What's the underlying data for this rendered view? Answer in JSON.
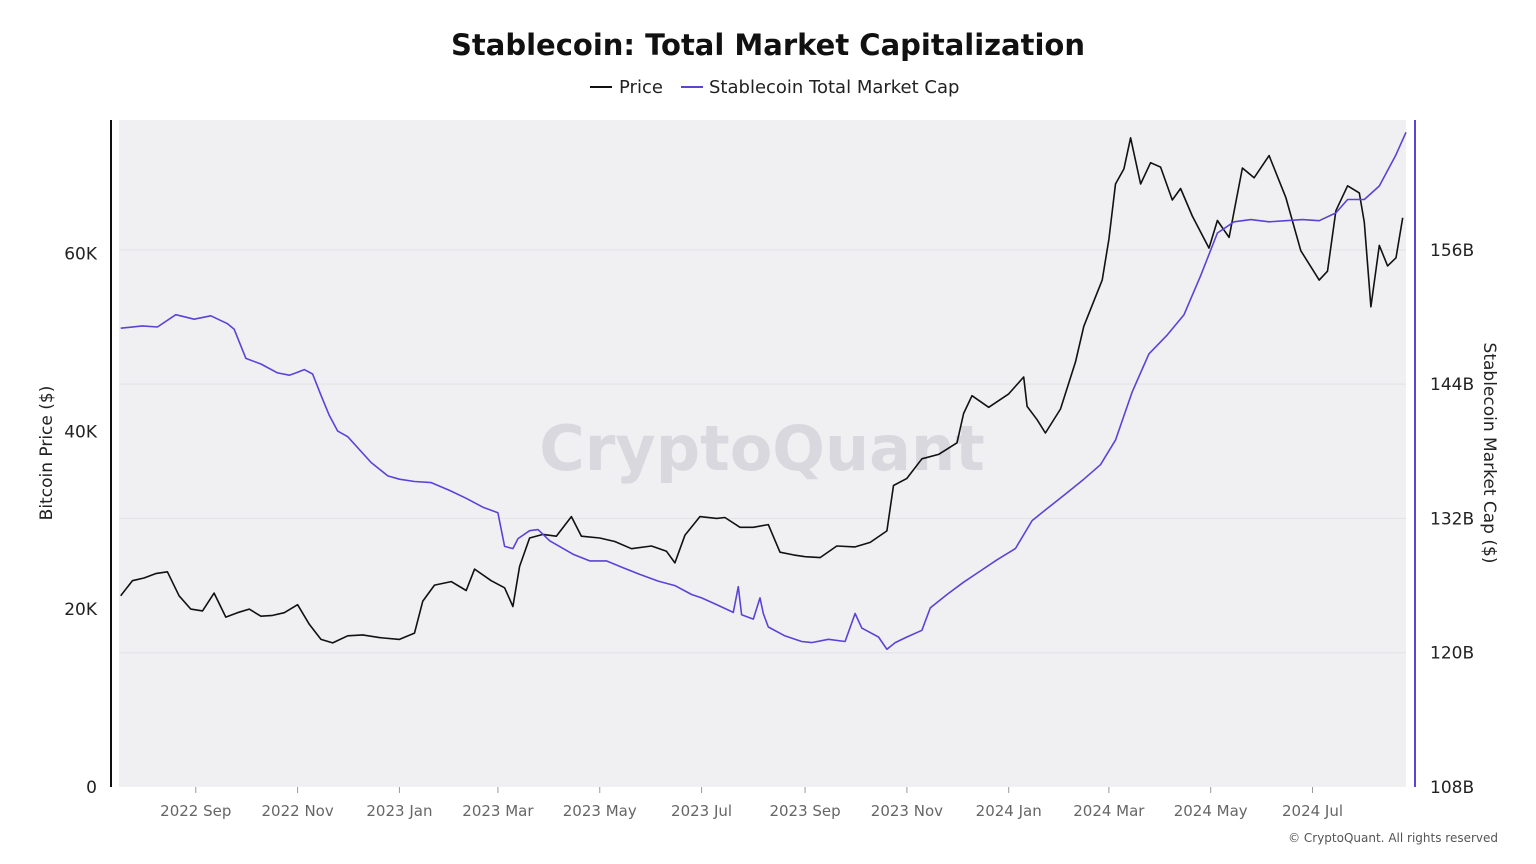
{
  "watermark": "CryptoQuant",
  "copyright": "© CryptoQuant. All rights reserved",
  "colors": {
    "price": "#111111",
    "stablecoin": "#5b43d6",
    "plot_bg": "#f0f0f3",
    "grid": "#e2e2e6"
  },
  "chart_data": {
    "type": "line",
    "title": "Stablecoin: Total Market Capitalization",
    "legend": [
      "Price",
      "Stablecoin Total Market Cap"
    ],
    "legend_position": "top-center",
    "grid": true,
    "x_range": [
      "2022-07-17",
      "2024-08-26"
    ],
    "x_ticks": [
      "2022 Sep",
      "2022 Nov",
      "2023 Jan",
      "2023 Mar",
      "2023 May",
      "2023 Jul",
      "2023 Sep",
      "2023 Nov",
      "2024 Jan",
      "2024 Mar",
      "2024 May",
      "2024 Jul"
    ],
    "y_left": {
      "label": "Bitcoin Price ($)",
      "range": [
        0,
        75000
      ],
      "ticks": [
        "0",
        "20K",
        "40K",
        "60K"
      ]
    },
    "y_right": {
      "label": "Stablecoin Market Cap ($)",
      "range": [
        108,
        167.6
      ],
      "ticks": [
        "108B",
        "120B",
        "132B",
        "144B",
        "156B"
      ]
    },
    "series": [
      {
        "name": "Price",
        "axis": "left",
        "x": [
          "2022-07-18",
          "2022-07-25",
          "2022-08-01",
          "2022-08-08",
          "2022-08-15",
          "2022-08-22",
          "2022-08-29",
          "2022-09-05",
          "2022-09-12",
          "2022-09-19",
          "2022-09-26",
          "2022-10-03",
          "2022-10-10",
          "2022-10-17",
          "2022-10-24",
          "2022-11-01",
          "2022-11-08",
          "2022-11-15",
          "2022-11-22",
          "2022-12-01",
          "2022-12-10",
          "2022-12-20",
          "2023-01-01",
          "2023-01-10",
          "2023-01-15",
          "2023-01-22",
          "2023-02-01",
          "2023-02-10",
          "2023-02-15",
          "2023-02-25",
          "2023-03-05",
          "2023-03-10",
          "2023-03-14",
          "2023-03-20",
          "2023-03-28",
          "2023-04-05",
          "2023-04-14",
          "2023-04-20",
          "2023-05-01",
          "2023-05-10",
          "2023-05-20",
          "2023-06-01",
          "2023-06-10",
          "2023-06-15",
          "2023-06-21",
          "2023-06-30",
          "2023-07-10",
          "2023-07-15",
          "2023-07-24",
          "2023-08-01",
          "2023-08-10",
          "2023-08-17",
          "2023-08-25",
          "2023-09-01",
          "2023-09-10",
          "2023-09-20",
          "2023-10-01",
          "2023-10-10",
          "2023-10-20",
          "2023-10-24",
          "2023-11-01",
          "2023-11-10",
          "2023-11-20",
          "2023-12-01",
          "2023-12-05",
          "2023-12-10",
          "2023-12-20",
          "2024-01-01",
          "2024-01-10",
          "2024-01-12",
          "2024-01-18",
          "2024-01-23",
          "2024-02-01",
          "2024-02-10",
          "2024-02-15",
          "2024-02-26",
          "2024-03-01",
          "2024-03-05",
          "2024-03-10",
          "2024-03-14",
          "2024-03-20",
          "2024-03-26",
          "2024-04-01",
          "2024-04-08",
          "2024-04-13",
          "2024-04-20",
          "2024-04-30",
          "2024-05-05",
          "2024-05-12",
          "2024-05-20",
          "2024-05-27",
          "2024-06-05",
          "2024-06-15",
          "2024-06-24",
          "2024-07-05",
          "2024-07-10",
          "2024-07-15",
          "2024-07-22",
          "2024-07-29",
          "2024-08-01",
          "2024-08-05",
          "2024-08-10",
          "2024-08-15",
          "2024-08-20",
          "2024-08-24"
        ],
        "values": [
          21500,
          23200,
          23500,
          24000,
          24200,
          21500,
          20000,
          19800,
          21800,
          19100,
          19600,
          20000,
          19200,
          19300,
          19600,
          20500,
          18300,
          16600,
          16200,
          17000,
          17100,
          16800,
          16600,
          17300,
          20900,
          22700,
          23100,
          22100,
          24500,
          23200,
          22400,
          20300,
          24800,
          28000,
          28400,
          28200,
          30400,
          28200,
          28000,
          27600,
          26800,
          27100,
          26500,
          25200,
          28300,
          30400,
          30200,
          30300,
          29200,
          29200,
          29500,
          26400,
          26100,
          25900,
          25800,
          27100,
          27000,
          27500,
          28800,
          33900,
          34700,
          36900,
          37400,
          38700,
          42000,
          44000,
          42700,
          44200,
          46100,
          42800,
          41300,
          39800,
          42500,
          47800,
          51800,
          57000,
          61600,
          67800,
          69500,
          73000,
          67800,
          70200,
          69700,
          66000,
          67300,
          64200,
          60600,
          63700,
          61800,
          69600,
          68500,
          71000,
          66300,
          60300,
          57000,
          58000,
          64800,
          67600,
          66800,
          63500,
          54000,
          60900,
          58600,
          59500,
          64000
        ]
      },
      {
        "name": "Stablecoin Total Market Cap",
        "axis": "right",
        "x": [
          "2022-07-18",
          "2022-07-31",
          "2022-08-09",
          "2022-08-20",
          "2022-08-31",
          "2022-09-10",
          "2022-09-20",
          "2022-09-24",
          "2022-10-01",
          "2022-10-10",
          "2022-10-20",
          "2022-10-27",
          "2022-10-31",
          "2022-11-05",
          "2022-11-10",
          "2022-11-15",
          "2022-11-20",
          "2022-11-25",
          "2022-12-01",
          "2022-12-15",
          "2022-12-25",
          "2023-01-01",
          "2023-01-10",
          "2023-01-20",
          "2023-01-31",
          "2023-02-10",
          "2023-02-20",
          "2023-03-01",
          "2023-03-05",
          "2023-03-10",
          "2023-03-13",
          "2023-03-20",
          "2023-03-25",
          "2023-04-01",
          "2023-04-15",
          "2023-04-25",
          "2023-05-05",
          "2023-05-15",
          "2023-05-25",
          "2023-06-05",
          "2023-06-15",
          "2023-06-25",
          "2023-07-01",
          "2023-07-10",
          "2023-07-20",
          "2023-07-23",
          "2023-07-25",
          "2023-08-01",
          "2023-08-05",
          "2023-08-07",
          "2023-08-10",
          "2023-08-20",
          "2023-08-30",
          "2023-09-05",
          "2023-09-15",
          "2023-09-25",
          "2023-10-01",
          "2023-10-05",
          "2023-10-15",
          "2023-10-20",
          "2023-10-25",
          "2023-11-01",
          "2023-11-10",
          "2023-11-15",
          "2023-11-25",
          "2023-12-05",
          "2023-12-15",
          "2023-12-25",
          "2024-01-05",
          "2024-01-15",
          "2024-01-25",
          "2024-02-05",
          "2024-02-15",
          "2024-02-25",
          "2024-03-05",
          "2024-03-15",
          "2024-03-25",
          "2024-04-05",
          "2024-04-15",
          "2024-04-25",
          "2024-05-05",
          "2024-05-15",
          "2024-05-25",
          "2024-06-05",
          "2024-06-15",
          "2024-06-25",
          "2024-07-05",
          "2024-07-15",
          "2024-07-22",
          "2024-08-01",
          "2024-08-10",
          "2024-08-20",
          "2024-08-26"
        ],
        "values": [
          149.0,
          149.2,
          149.1,
          150.2,
          149.8,
          150.1,
          149.4,
          148.9,
          146.3,
          145.8,
          145.0,
          144.8,
          145.0,
          145.3,
          144.9,
          143.0,
          141.2,
          139.8,
          139.3,
          137.0,
          135.8,
          135.5,
          135.3,
          135.2,
          134.5,
          133.8,
          133.0,
          132.5,
          129.5,
          129.3,
          130.2,
          130.9,
          131.0,
          130.0,
          128.8,
          128.2,
          128.2,
          127.6,
          127.0,
          126.4,
          126.0,
          125.2,
          124.9,
          124.3,
          123.6,
          125.9,
          123.4,
          123.0,
          124.9,
          123.5,
          122.3,
          121.5,
          121.0,
          120.9,
          121.2,
          121.0,
          123.5,
          122.2,
          121.4,
          120.3,
          120.9,
          121.4,
          122.0,
          124.0,
          125.2,
          126.3,
          127.3,
          128.3,
          129.3,
          131.8,
          133.0,
          134.3,
          135.5,
          136.8,
          139.0,
          143.3,
          146.7,
          148.4,
          150.2,
          153.7,
          157.5,
          158.5,
          158.7,
          158.5,
          158.6,
          158.7,
          158.6,
          159.3,
          160.5,
          160.5,
          161.7,
          164.5,
          166.5
        ]
      }
    ]
  }
}
